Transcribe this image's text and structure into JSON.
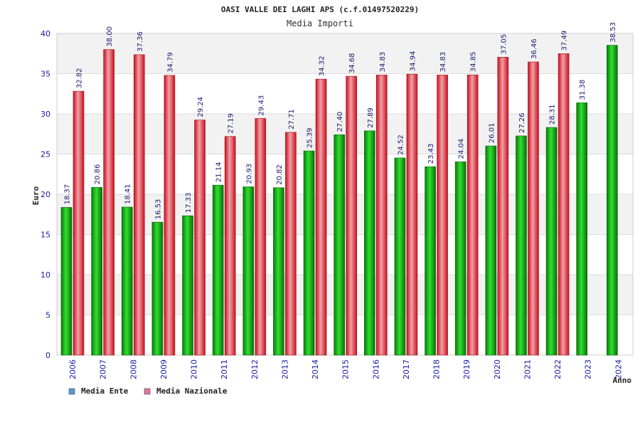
{
  "chart_data": {
    "type": "bar",
    "title": "OASI VALLE DEI LAGHI APS (c.f.01497520229)",
    "subtitle": "Media Importi",
    "xlabel": "Anno",
    "ylabel": "Euro",
    "ylim": [
      0,
      40
    ],
    "yticks": [
      "0",
      "5",
      "10",
      "15",
      "20",
      "25",
      "30",
      "35",
      "40"
    ],
    "grid": true,
    "legend_position": "bottom-left",
    "categories": [
      "2006",
      "2007",
      "2008",
      "2009",
      "2010",
      "2011",
      "2012",
      "2013",
      "2014",
      "2015",
      "2016",
      "2017",
      "2018",
      "2019",
      "2020",
      "2021",
      "2022",
      "2023",
      "2024"
    ],
    "series": [
      {
        "name": "Media Ente",
        "legend_color": "#5b9bd5",
        "bar_color": "#22aa22",
        "values": [
          18.37,
          20.86,
          18.41,
          16.53,
          17.33,
          21.14,
          20.93,
          20.82,
          25.39,
          27.4,
          27.89,
          24.52,
          23.43,
          24.04,
          26.01,
          27.26,
          28.31,
          31.38,
          38.53
        ],
        "labels": [
          "18.37",
          "20.86",
          "18.41",
          "16.53",
          "17.33",
          "21.14",
          "20.93",
          "20.82",
          "25.39",
          "27.40",
          "27.89",
          "24.52",
          "23.43",
          "24.04",
          "26.01",
          "27.26",
          "28.31",
          "31.38",
          "38.53"
        ]
      },
      {
        "name": "Media Nazionale",
        "legend_color": "#dd77aa",
        "bar_color": "#e8303a",
        "values": [
          32.82,
          38.0,
          37.36,
          34.79,
          29.24,
          27.19,
          29.43,
          27.71,
          34.32,
          34.68,
          34.83,
          34.94,
          34.83,
          34.85,
          37.05,
          36.46,
          37.49,
          null,
          null
        ],
        "labels": [
          "32.82",
          "38.00",
          "37.36",
          "34.79",
          "29.24",
          "27.19",
          "29.43",
          "27.71",
          "34.32",
          "34.68",
          "34.83",
          "34.94",
          "34.83",
          "34.85",
          "37.05",
          "36.46",
          "37.49",
          null,
          null
        ]
      }
    ]
  }
}
